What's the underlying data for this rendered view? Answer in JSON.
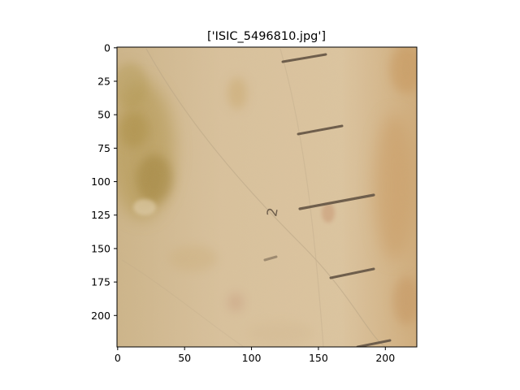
{
  "figure": {
    "title": "['ISIC_5496810.jpg']"
  },
  "image": {
    "subject": "dermoscopy-skin-lesion",
    "width": 224,
    "height": 224,
    "ruler_digit": "2"
  },
  "axes": {
    "x_ticks": [
      0,
      50,
      100,
      150,
      200
    ],
    "x_tick_labels": [
      "0",
      "50",
      "100",
      "150",
      "200"
    ],
    "y_ticks": [
      0,
      25,
      50,
      75,
      100,
      125,
      150,
      175,
      200
    ],
    "y_tick_labels": [
      "0",
      "25",
      "50",
      "75",
      "100",
      "125",
      "150",
      "175",
      "200"
    ]
  },
  "colors": {
    "skin_base": "#d8bf98",
    "lesion": "#a88a3e",
    "ruler_marks": "#6a5a48",
    "axis": "#000000"
  }
}
